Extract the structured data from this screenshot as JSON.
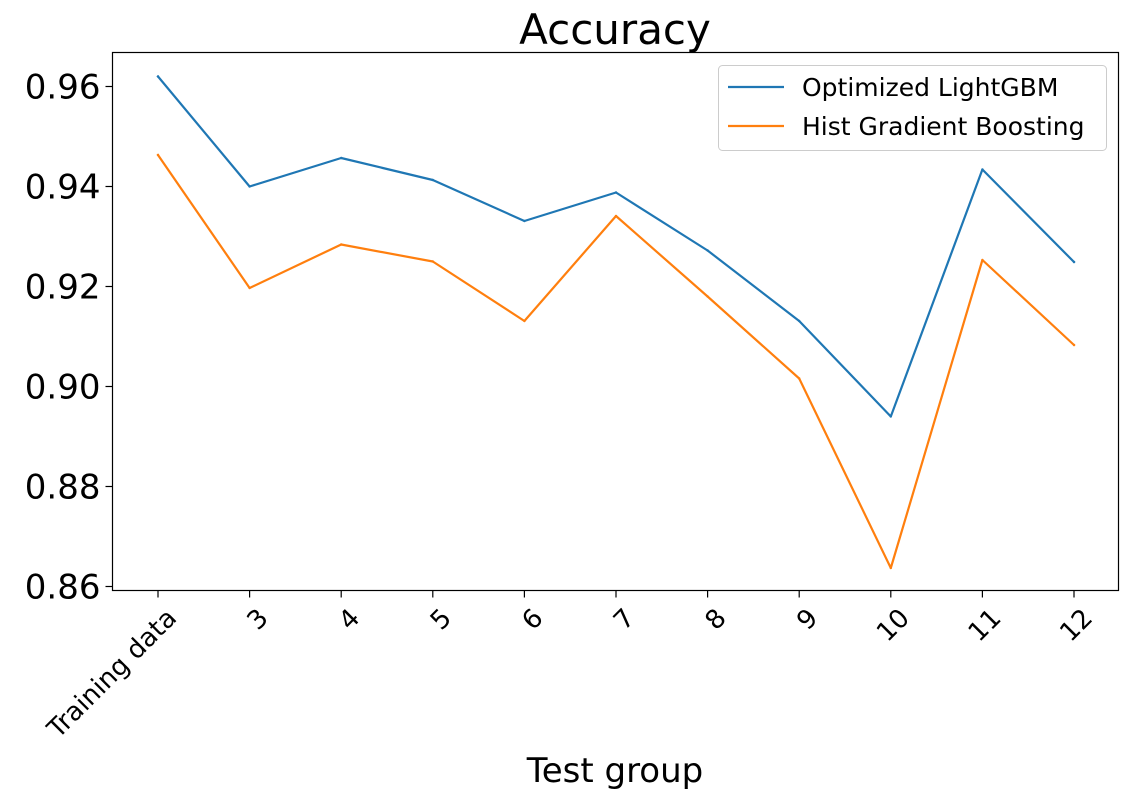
{
  "chart_data": {
    "type": "line",
    "title": "Accuracy",
    "xlabel": "Test group",
    "ylabel": "",
    "categories": [
      "Training data",
      "3",
      "4",
      "5",
      "6",
      "7",
      "8",
      "9",
      "10",
      "11",
      "12"
    ],
    "series": [
      {
        "name": "Optimized LightGBM",
        "color": "#1f77b4",
        "values": [
          0.962,
          0.94,
          0.9457,
          0.9413,
          0.9331,
          0.9388,
          0.9272,
          0.9131,
          0.894,
          0.9434,
          0.9249
        ]
      },
      {
        "name": "Hist Gradient Boosting",
        "color": "#ff7f0e",
        "values": [
          0.9463,
          0.9197,
          0.9284,
          0.925,
          0.9131,
          0.9341,
          0.918,
          0.9016,
          0.8637,
          0.9253,
          0.9083
        ]
      }
    ],
    "ylim": [
      0.8592,
      0.9668
    ],
    "yticks": [
      0.86,
      0.88,
      0.9,
      0.92,
      0.94,
      0.96
    ],
    "ytick_labels": [
      "0.86",
      "0.88",
      "0.90",
      "0.92",
      "0.94",
      "0.96"
    ],
    "grid": false,
    "legend_position": "top-right"
  }
}
